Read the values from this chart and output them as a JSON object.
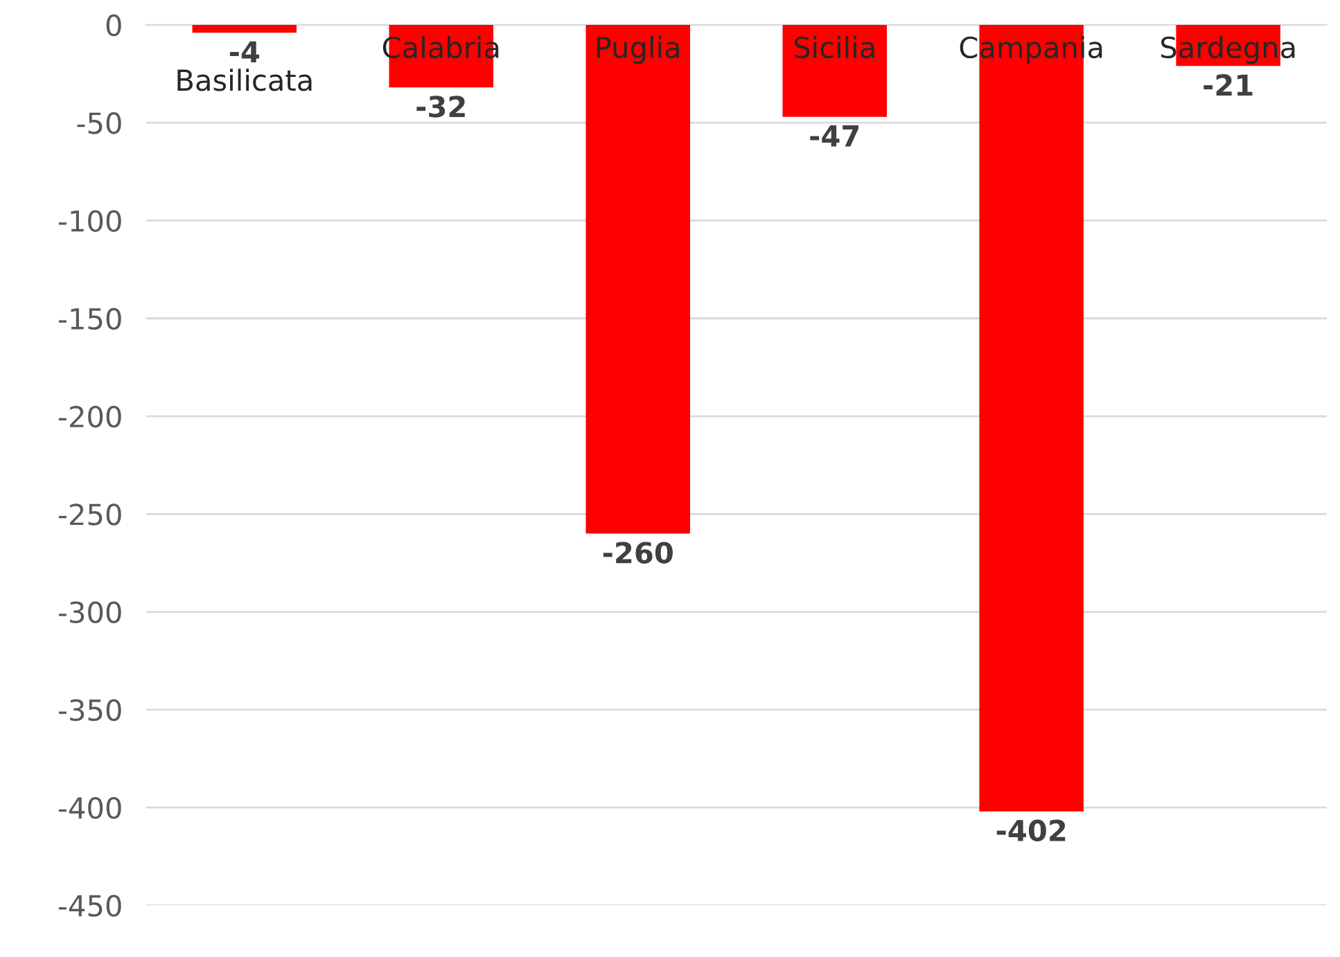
{
  "chart_data": {
    "type": "bar",
    "categories": [
      "Basilicata",
      "Calabria",
      "Puglia",
      "Sicilia",
      "Campania",
      "Sardegna"
    ],
    "values": [
      -4,
      -32,
      -260,
      -47,
      -402,
      -21
    ],
    "color": "#ff0000",
    "ylim": [
      -450,
      0
    ],
    "yticks": [
      -450,
      -400,
      -350,
      -300,
      -250,
      -200,
      -150,
      -100,
      -50,
      0
    ],
    "grid": "y",
    "data_labels": true
  }
}
